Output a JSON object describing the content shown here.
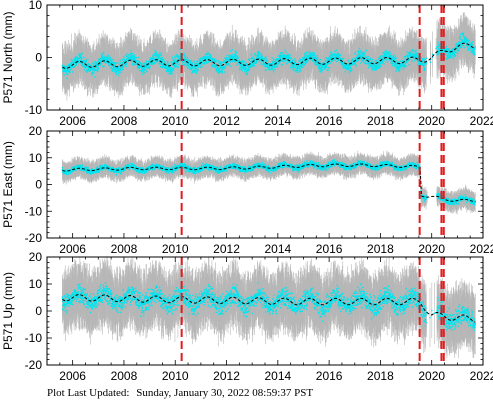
{
  "footer": {
    "label": "Plot Last Updated:",
    "timestamp": "Sunday, January 30, 2022 08:59:37 PST"
  },
  "colors": {
    "scatter": "#00e5f0",
    "error_bars": "#b0b0b0",
    "trend": "#000000",
    "event_lines": "#e41a1c"
  },
  "chart_data": [
    {
      "type": "scatter",
      "station": "P571",
      "ylabel": "P571 North (mm)",
      "xlim": [
        2005,
        2022
      ],
      "ylim": [
        -10,
        10
      ],
      "xticks": [
        2006,
        2008,
        2010,
        2012,
        2014,
        2016,
        2018,
        2020,
        2022
      ],
      "yticks": [
        -10,
        0,
        10
      ],
      "data_range": [
        2005.6,
        2021.7
      ],
      "gap": [
        2019.8,
        2020.2
      ],
      "trend_x": [
        2005.6,
        2006.4,
        2007.4,
        2008.4,
        2009.4,
        2010.4,
        2011.4,
        2012.4,
        2013.4,
        2014.4,
        2015.4,
        2016.4,
        2017.4,
        2018.4,
        2019.5,
        2020.0,
        2020.6,
        2021.0,
        2021.6
      ],
      "trend_y": [
        -1.5,
        -1.3,
        -1.2,
        -1.1,
        -1.0,
        -1.0,
        -1.0,
        -0.9,
        -0.9,
        -0.8,
        -0.7,
        -0.7,
        -0.6,
        -0.6,
        -0.5,
        0.0,
        1.5,
        2.0,
        2.3
      ],
      "seasonal_amp": 1.0,
      "scatter_spread": 1.5,
      "error_spread": 5.0,
      "event_lines_x": [
        2010.25,
        2019.53,
        2020.38,
        2020.47
      ]
    },
    {
      "type": "scatter",
      "station": "P571",
      "ylabel": "P571 East (mm)",
      "xlim": [
        2005,
        2022
      ],
      "ylim": [
        -20,
        20
      ],
      "xticks": [
        2006,
        2008,
        2010,
        2012,
        2014,
        2016,
        2018,
        2020,
        2022
      ],
      "yticks": [
        -20,
        -10,
        0,
        10,
        20
      ],
      "data_range": [
        2005.6,
        2021.7
      ],
      "gap": [
        2019.8,
        2020.2
      ],
      "trend_x": [
        2005.6,
        2007.0,
        2008.5,
        2010.0,
        2011.5,
        2013.0,
        2014.5,
        2016.0,
        2017.5,
        2019.0,
        2019.55,
        2019.58,
        2020.0,
        2020.5,
        2021.0,
        2021.7
      ],
      "trend_y": [
        5.5,
        5.7,
        6.0,
        6.0,
        6.0,
        6.3,
        6.8,
        7.2,
        7.2,
        6.8,
        6.5,
        -4.0,
        -4.5,
        -5.5,
        -6.0,
        -6.0
      ],
      "seasonal_amp": 0.8,
      "scatter_spread": 1.3,
      "error_spread": 4.0,
      "event_lines_x": [
        2010.25,
        2019.53,
        2020.38,
        2020.47
      ]
    },
    {
      "type": "scatter",
      "station": "P571",
      "ylabel": "P571 Up (mm)",
      "xlim": [
        2005,
        2022
      ],
      "ylim": [
        -20,
        20
      ],
      "xticks": [
        2006,
        2008,
        2010,
        2012,
        2014,
        2016,
        2018,
        2020,
        2022
      ],
      "yticks": [
        -20,
        -10,
        0,
        10,
        20
      ],
      "data_range": [
        2005.6,
        2021.7
      ],
      "gap": [
        2019.8,
        2020.2
      ],
      "trend_x": [
        2005.6,
        2007.0,
        2008.5,
        2010.0,
        2011.5,
        2013.0,
        2014.5,
        2016.0,
        2017.5,
        2019.0,
        2019.55,
        2020.0,
        2020.5,
        2021.0,
        2021.7
      ],
      "trend_y": [
        5.0,
        4.8,
        4.5,
        4.2,
        4.0,
        3.8,
        3.5,
        3.5,
        3.5,
        3.5,
        3.5,
        -1.5,
        -2.0,
        -2.5,
        -3.0
      ],
      "seasonal_amp": 2.0,
      "scatter_spread": 4.5,
      "error_spread": 12.0,
      "event_lines_x": [
        2010.25,
        2019.53,
        2020.38,
        2020.47
      ]
    }
  ]
}
